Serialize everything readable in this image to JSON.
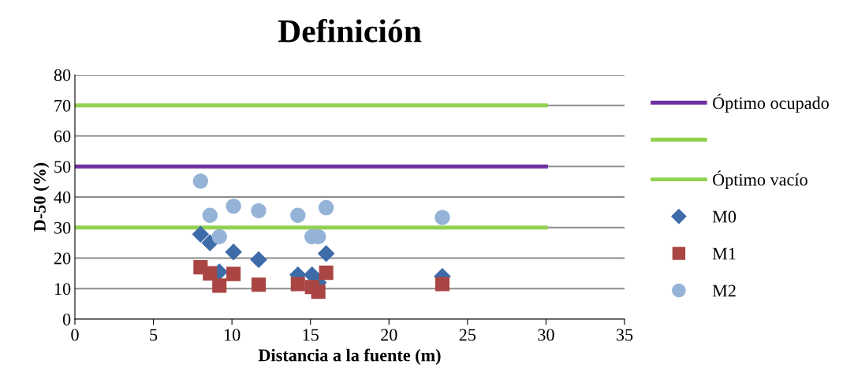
{
  "chart_data": {
    "type": "scatter",
    "title": "Definición",
    "xlabel": "Distancia a la fuente (m)",
    "ylabel": "D-50 (%)",
    "xlim": [
      0,
      35
    ],
    "xticks": [
      0,
      5,
      10,
      15,
      20,
      25,
      30,
      35
    ],
    "ylim": [
      0,
      80
    ],
    "yticks": [
      0,
      10,
      20,
      30,
      40,
      50,
      60,
      70,
      80
    ],
    "grid": "y",
    "legend": "right",
    "series": [
      {
        "name": "Óptimo ocupado",
        "type": "line",
        "color": "#7030a0",
        "x": [
          0,
          30
        ],
        "values": [
          50,
          50
        ],
        "marker": "none"
      },
      {
        "type": "line",
        "color": "#92d050",
        "x": [
          0,
          30
        ],
        "values": [
          70,
          70
        ],
        "marker": "none"
      },
      {
        "name": "Óptimo vacío",
        "type": "line",
        "color": "#92d050",
        "x": [
          0,
          30
        ],
        "values": [
          30,
          30
        ],
        "marker": "none"
      },
      {
        "name": "M0",
        "color": "#3d6ca8",
        "marker": "diamond",
        "x": [
          8.0,
          8.6,
          9.2,
          10.1,
          11.7,
          14.2,
          15.1,
          15.5,
          16.0,
          23.4
        ],
        "values": [
          27.8,
          25,
          15.5,
          22,
          19.5,
          14.5,
          14.5,
          12,
          21.5,
          14
        ]
      },
      {
        "name": "M1",
        "color": "#a94542",
        "marker": "square",
        "x": [
          8.0,
          8.6,
          9.2,
          10.1,
          11.7,
          14.2,
          15.1,
          15.5,
          16.0,
          23.4
        ],
        "values": [
          17,
          15,
          11,
          14.8,
          11.3,
          11.5,
          10.5,
          9,
          15.2,
          11.5
        ]
      },
      {
        "name": "M2",
        "color": "#95b3d7",
        "marker": "circle",
        "x": [
          8.0,
          8.6,
          9.2,
          10.1,
          11.7,
          14.2,
          15.1,
          15.5,
          16.0,
          23.4
        ],
        "values": [
          45.2,
          34,
          27,
          37,
          35.5,
          34,
          27,
          27,
          36.5,
          33.3
        ]
      }
    ]
  }
}
